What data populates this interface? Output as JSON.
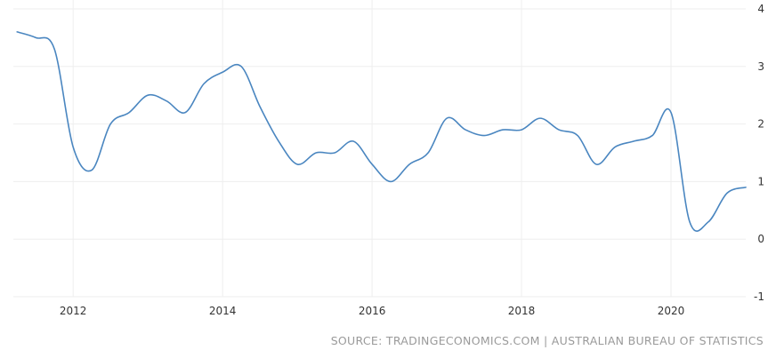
{
  "chart_data": {
    "type": "line",
    "title": "",
    "xlabel": "",
    "ylabel": "",
    "xlim": [
      2011.2,
      2021.0
    ],
    "ylim": [
      -1,
      4
    ],
    "grid": true,
    "legend": "none",
    "x_ticks": [
      2012,
      2014,
      2016,
      2018,
      2020
    ],
    "y_ticks": [
      -1,
      0,
      1,
      2,
      3,
      4
    ],
    "series": [
      {
        "color": "#4a86c0",
        "x": [
          2011.25,
          2011.5,
          2011.75,
          2012.0,
          2012.25,
          2012.5,
          2012.75,
          2013.0,
          2013.25,
          2013.5,
          2013.75,
          2014.0,
          2014.25,
          2014.5,
          2014.75,
          2015.0,
          2015.25,
          2015.5,
          2015.75,
          2016.0,
          2016.25,
          2016.5,
          2016.75,
          2017.0,
          2017.25,
          2017.5,
          2017.75,
          2018.0,
          2018.25,
          2018.5,
          2018.75,
          2019.0,
          2019.25,
          2019.5,
          2019.75,
          2020.0,
          2020.25,
          2020.5,
          2020.75,
          2021.0
        ],
        "y": [
          3.6,
          3.5,
          3.3,
          1.6,
          1.2,
          2.0,
          2.2,
          2.5,
          2.4,
          2.2,
          2.7,
          2.9,
          3.0,
          2.3,
          1.7,
          1.3,
          1.5,
          1.5,
          1.7,
          1.3,
          1.0,
          1.3,
          1.5,
          2.1,
          1.9,
          1.8,
          1.9,
          1.9,
          2.1,
          1.9,
          1.8,
          1.3,
          1.6,
          1.7,
          1.8,
          2.2,
          0.3,
          0.3,
          0.8,
          0.9
        ]
      }
    ]
  },
  "source_note": "SOURCE: TRADINGECONOMICS.COM | AUSTRALIAN BUREAU OF STATISTICS"
}
